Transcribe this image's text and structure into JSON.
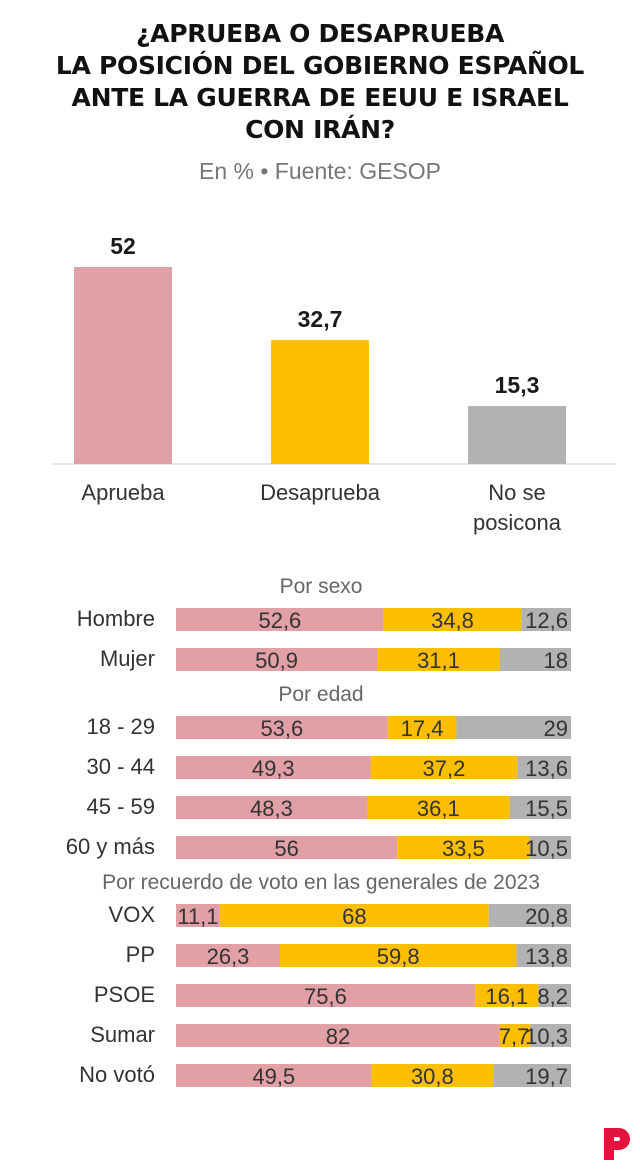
{
  "title_lines": [
    "¿APRUEBA O DESAPRUEBA",
    "LA POSICIÓN DEL GOBIERNO ESPAÑOL",
    "ANTE LA GUERRA DE EEUU E ISRAEL",
    "CON IRÁN?"
  ],
  "subtitle": "En % • Fuente: GESOP",
  "colors": {
    "aprueba": "#e0a0a6",
    "desaprueba": "#fbbf00",
    "no_se_posiciona": "#b2b2b2",
    "logo": "#e3133d"
  },
  "chart_data": [
    {
      "type": "bar",
      "title": "¿Aprueba o desaprueba la posición del Gobierno español ante la guerra de EEUU e Israel con Irán?",
      "categories": [
        "Aprueba",
        "Desaprueba",
        "No se posicona"
      ],
      "category_lines": [
        [
          "Aprueba"
        ],
        [
          "Desaprueba"
        ],
        [
          "No se",
          "posicona"
        ]
      ],
      "values": [
        52,
        32.7,
        15.3
      ],
      "value_labels": [
        "52",
        "32,7",
        "15,3"
      ],
      "ylim": [
        0,
        52
      ]
    },
    {
      "type": "bar",
      "orientation": "horizontal",
      "stacked": true,
      "series_names": [
        "Aprueba",
        "Desaprueba",
        "No se posicona"
      ],
      "groups": [
        {
          "title": "Por sexo",
          "rows": [
            {
              "label": "Hombre",
              "values": [
                52.6,
                34.8,
                12.6
              ],
              "value_labels": [
                "52,6",
                "34,8",
                "12,6"
              ]
            },
            {
              "label": "Mujer",
              "values": [
                50.9,
                31.1,
                18
              ],
              "value_labels": [
                "50,9",
                "31,1",
                "18"
              ]
            }
          ]
        },
        {
          "title": "Por edad",
          "rows": [
            {
              "label": "18 - 29",
              "values": [
                53.6,
                17.4,
                29
              ],
              "value_labels": [
                "53,6",
                "17,4",
                "29"
              ]
            },
            {
              "label": "30 - 44",
              "values": [
                49.3,
                37.2,
                13.6
              ],
              "value_labels": [
                "49,3",
                "37,2",
                "13,6"
              ]
            },
            {
              "label": "45 - 59",
              "values": [
                48.3,
                36.1,
                15.5
              ],
              "value_labels": [
                "48,3",
                "36,1",
                "15,5"
              ]
            },
            {
              "label": "60 y más",
              "values": [
                56,
                33.5,
                10.5
              ],
              "value_labels": [
                "56",
                "33,5",
                "10,5"
              ]
            }
          ]
        },
        {
          "title": "Por recuerdo de voto en las generales de 2023",
          "rows": [
            {
              "label": "VOX",
              "values": [
                11.1,
                68,
                20.8
              ],
              "value_labels": [
                "11,1",
                "68",
                "20,8"
              ]
            },
            {
              "label": "PP",
              "values": [
                26.3,
                59.8,
                13.8
              ],
              "value_labels": [
                "26,3",
                "59,8",
                "13,8"
              ]
            },
            {
              "label": "PSOE",
              "values": [
                75.6,
                16.1,
                8.2
              ],
              "value_labels": [
                "75,6",
                "16,1",
                "8,2"
              ]
            },
            {
              "label": "Sumar",
              "values": [
                82,
                7.7,
                10.3
              ],
              "value_labels": [
                "82",
                "7,7",
                "10,3"
              ]
            },
            {
              "label": "No votó",
              "values": [
                49.5,
                30.8,
                19.7
              ],
              "value_labels": [
                "49,5",
                "30,8",
                "19,7"
              ]
            }
          ]
        }
      ]
    }
  ]
}
